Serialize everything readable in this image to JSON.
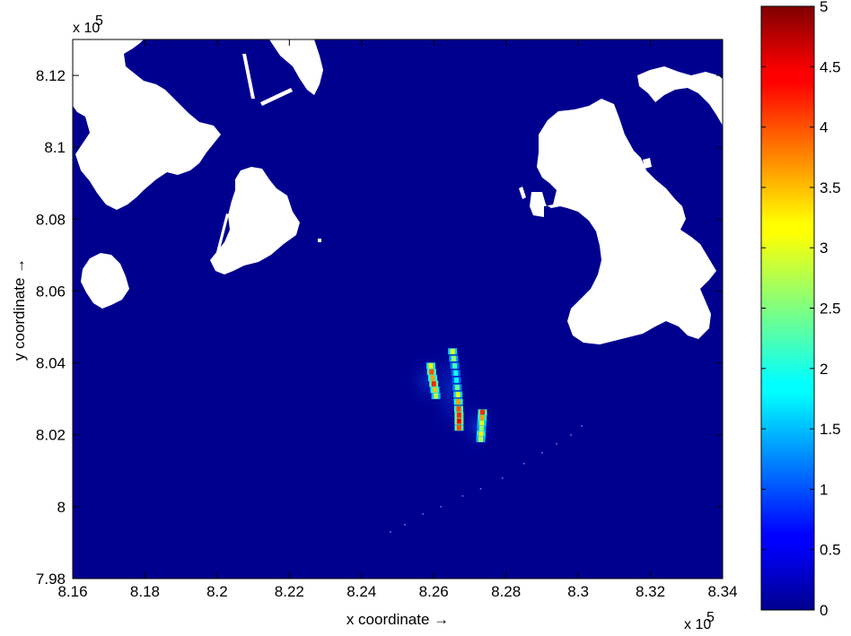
{
  "chart_data": {
    "type": "heatmap",
    "title": "",
    "xlabel": "x coordinate →",
    "ylabel": "y coordinate →",
    "x_multiplier": "x 10",
    "y_multiplier": "x 10",
    "exponent": "5",
    "xlim": [
      8.16,
      8.34
    ],
    "ylim": [
      7.98,
      8.13
    ],
    "x_ticks": [
      8.16,
      8.18,
      8.2,
      8.22,
      8.24,
      8.26,
      8.28,
      8.3,
      8.32,
      8.34
    ],
    "x_tick_labels": [
      "8.16",
      "8.18",
      "8.2",
      "8.22",
      "8.24",
      "8.26",
      "8.28",
      "8.3",
      "8.32",
      "8.34"
    ],
    "y_ticks": [
      7.98,
      8.0,
      8.02,
      8.04,
      8.06,
      8.08,
      8.1,
      8.12
    ],
    "y_tick_labels": [
      "7.98",
      "8",
      "8.02",
      "8.04",
      "8.06",
      "8.08",
      "8.1",
      "8.12"
    ],
    "colorbar": {
      "min": 0,
      "max": 5,
      "colormap": "jet",
      "ticks": [
        0,
        0.5,
        1,
        1.5,
        2,
        2.5,
        3,
        3.5,
        4,
        4.5,
        5
      ],
      "tick_labels": [
        "0",
        "0.5",
        "1",
        "1.5",
        "2",
        "2.5",
        "3",
        "3.5",
        "4",
        "4.5",
        "5"
      ]
    },
    "background_value": 0,
    "land_color": "#ffffff",
    "water_color": "#00008f",
    "plumes": [
      {
        "name": "left",
        "points": [
          [
            8.2592,
            8.0392,
            3.2
          ],
          [
            8.2594,
            8.0375,
            4.0
          ],
          [
            8.2597,
            8.0358,
            3.6
          ],
          [
            8.26,
            8.0342,
            4.2
          ],
          [
            8.2603,
            8.0325,
            3.4
          ],
          [
            8.2606,
            8.0308,
            2.8
          ]
        ]
      },
      {
        "name": "middle",
        "points": [
          [
            8.2652,
            8.0432,
            3.0
          ],
          [
            8.2655,
            8.0412,
            2.6
          ],
          [
            8.2658,
            8.0392,
            2.2
          ],
          [
            8.2661,
            8.0372,
            2.0
          ],
          [
            8.2663,
            8.0352,
            1.9
          ],
          [
            8.2665,
            8.0332,
            2.4
          ],
          [
            8.2667,
            8.0312,
            3.0
          ],
          [
            8.2668,
            8.0292,
            3.6
          ],
          [
            8.2669,
            8.0272,
            4.0
          ],
          [
            8.267,
            8.0255,
            4.2
          ],
          [
            8.267,
            8.0238,
            4.4
          ],
          [
            8.267,
            8.022,
            4.0
          ]
        ]
      },
      {
        "name": "right",
        "points": [
          [
            8.2735,
            8.0262,
            4.2
          ],
          [
            8.2734,
            8.0247,
            3.6
          ],
          [
            8.2733,
            8.0232,
            3.0
          ],
          [
            8.2732,
            8.0217,
            2.6
          ],
          [
            8.2731,
            8.0202,
            3.2
          ],
          [
            8.273,
            8.0188,
            2.8
          ]
        ]
      }
    ],
    "trail_points": [
      [
        8.301,
        8.0225
      ],
      [
        8.298,
        8.02
      ],
      [
        8.294,
        8.0175
      ],
      [
        8.29,
        8.015
      ],
      [
        8.285,
        8.012
      ],
      [
        8.279,
        8.008
      ],
      [
        8.273,
        8.005
      ],
      [
        8.268,
        8.003
      ],
      [
        8.262,
        8.0
      ],
      [
        8.257,
        7.998
      ],
      [
        8.252,
        7.995
      ],
      [
        8.248,
        7.993
      ]
    ]
  }
}
